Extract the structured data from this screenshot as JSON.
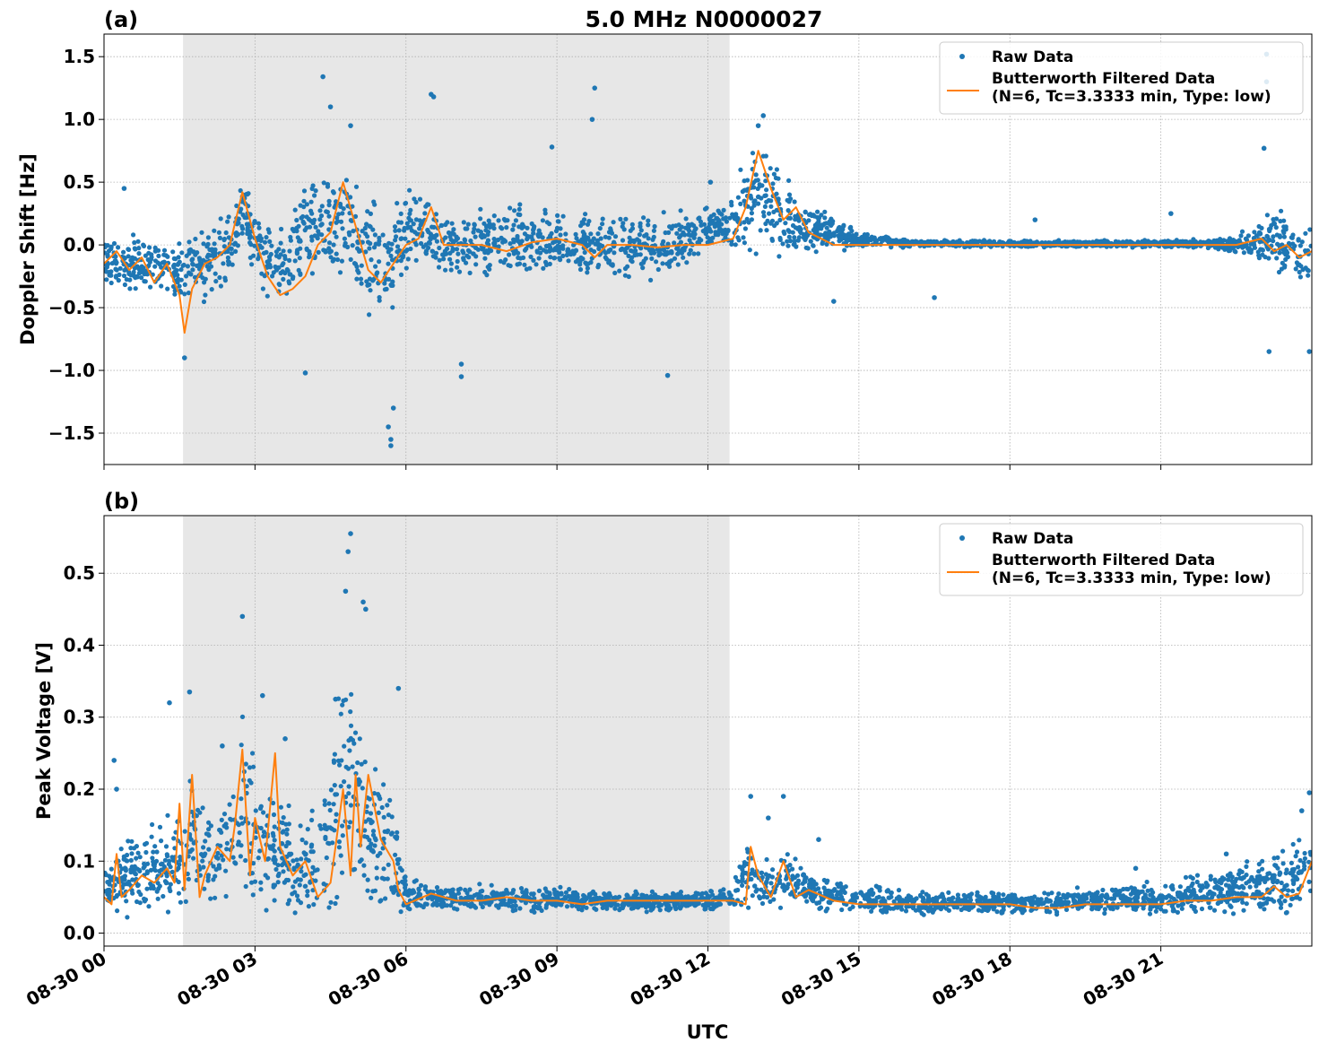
{
  "figure": {
    "title": "5.0 MHz N0000027",
    "xlabel": "UTC"
  },
  "chart_data": [
    {
      "type": "scatter",
      "panel_label": "(a)",
      "title": "5.0 MHz N0000027",
      "xlabel": "",
      "ylabel": "Doppler Shift [Hz]",
      "x_unit": "hours UTC on 08-30",
      "xlim": [
        0,
        24
      ],
      "ylim": [
        -1.75,
        1.68
      ],
      "yticks": [
        -1.5,
        -1.0,
        -0.5,
        0.0,
        0.5,
        1.0,
        1.5
      ],
      "ytick_labels": [
        "−1.5",
        "−1.0",
        "−0.5",
        "0.0",
        "0.5",
        "1.0",
        "1.5"
      ],
      "grid": true,
      "legend_position": "top-right",
      "shaded_region": [
        1.57,
        12.43
      ],
      "series": [
        {
          "name": "Raw Data",
          "kind": "scatter",
          "color": "#1f77b4",
          "band": {
            "x": [
              0,
              0.5,
              1.0,
              1.5,
              2.0,
              2.5,
              2.8,
              3.2,
              3.6,
              4.0,
              4.4,
              4.8,
              5.2,
              5.6,
              6.0,
              6.5,
              7.0,
              7.5,
              8.0,
              8.5,
              9.0,
              9.5,
              10.0,
              10.5,
              11.0,
              11.5,
              12.0,
              12.5,
              12.8,
              13.1,
              13.5,
              14.0,
              14.5,
              15.0,
              16.0,
              17.0,
              18.0,
              19.0,
              20.0,
              21.0,
              22.0,
              22.5,
              23.0,
              23.5,
              24.0
            ],
            "lower": [
              -0.35,
              -0.4,
              -0.45,
              -0.55,
              -0.5,
              -0.3,
              -0.05,
              -0.45,
              -0.55,
              -0.3,
              -0.3,
              -0.45,
              -0.6,
              -0.65,
              -0.3,
              -0.25,
              -0.25,
              -0.3,
              -0.3,
              -0.3,
              -0.25,
              -0.3,
              -0.3,
              -0.3,
              -0.3,
              -0.25,
              -0.05,
              -0.05,
              -0.05,
              -0.1,
              -0.15,
              -0.1,
              -0.05,
              -0.03,
              -0.02,
              -0.02,
              -0.02,
              -0.02,
              -0.02,
              -0.02,
              -0.03,
              -0.1,
              -0.2,
              -0.3,
              -0.4
            ],
            "upper": [
              0.1,
              0.1,
              0.1,
              0.1,
              0.15,
              0.3,
              0.6,
              0.2,
              0.2,
              0.5,
              0.7,
              0.7,
              0.5,
              0.3,
              0.5,
              0.35,
              0.2,
              0.35,
              0.35,
              0.3,
              0.3,
              0.3,
              0.25,
              0.3,
              0.25,
              0.3,
              0.3,
              0.35,
              0.85,
              0.9,
              0.6,
              0.35,
              0.25,
              0.1,
              0.05,
              0.04,
              0.04,
              0.04,
              0.04,
              0.04,
              0.05,
              0.1,
              0.25,
              0.3,
              0.2
            ]
          },
          "outliers": [
            [
              4.35,
              1.34
            ],
            [
              4.5,
              1.1
            ],
            [
              5.7,
              -1.6
            ],
            [
              5.7,
              -1.55
            ],
            [
              5.65,
              -1.45
            ],
            [
              5.75,
              -1.3
            ],
            [
              6.5,
              1.2
            ],
            [
              6.55,
              1.18
            ],
            [
              9.75,
              1.25
            ],
            [
              9.7,
              1.0
            ],
            [
              8.9,
              0.78
            ],
            [
              4.0,
              -1.02
            ],
            [
              7.1,
              -0.95
            ],
            [
              7.1,
              -1.05
            ],
            [
              11.2,
              -1.04
            ],
            [
              13.1,
              1.03
            ],
            [
              13.0,
              0.95
            ],
            [
              16.5,
              -0.42
            ],
            [
              23.1,
              1.52
            ],
            [
              23.1,
              1.3
            ],
            [
              23.05,
              0.77
            ],
            [
              23.15,
              -0.85
            ],
            [
              23.95,
              -0.85
            ],
            [
              1.6,
              -0.9
            ],
            [
              0.4,
              0.45
            ],
            [
              12.05,
              0.5
            ],
            [
              18.5,
              0.2
            ],
            [
              21.2,
              0.25
            ],
            [
              14.5,
              -0.45
            ],
            [
              4.9,
              0.95
            ]
          ]
        },
        {
          "name": "Butterworth Filtered Data\n(N=6, Tc=3.3333 min, Type: low)",
          "kind": "line",
          "color": "#ff7f0e",
          "x": [
            0,
            0.25,
            0.5,
            0.75,
            1.0,
            1.25,
            1.5,
            1.6,
            1.75,
            2.0,
            2.25,
            2.5,
            2.75,
            3.0,
            3.25,
            3.5,
            3.75,
            4.0,
            4.25,
            4.5,
            4.75,
            5.0,
            5.25,
            5.5,
            5.75,
            6.0,
            6.25,
            6.5,
            6.75,
            7.0,
            7.5,
            8.0,
            8.5,
            9.0,
            9.5,
            9.75,
            10.0,
            10.5,
            11.0,
            11.5,
            12.0,
            12.5,
            12.75,
            13.0,
            13.25,
            13.5,
            13.75,
            14.0,
            14.5,
            15.0,
            16.0,
            17.0,
            18.0,
            19.0,
            20.0,
            21.0,
            22.0,
            22.5,
            23.0,
            23.25,
            23.5,
            23.75,
            24.0
          ],
          "y": [
            -0.15,
            -0.05,
            -0.2,
            -0.1,
            -0.3,
            -0.15,
            -0.4,
            -0.7,
            -0.35,
            -0.15,
            -0.1,
            0.0,
            0.42,
            0.05,
            -0.25,
            -0.4,
            -0.35,
            -0.25,
            0.0,
            0.1,
            0.5,
            0.15,
            -0.2,
            -0.3,
            -0.15,
            0.0,
            0.05,
            0.3,
            0.0,
            0.0,
            0.0,
            -0.05,
            0.02,
            0.05,
            0.0,
            -0.1,
            0.0,
            0.0,
            -0.02,
            0.0,
            0.0,
            0.05,
            0.3,
            0.75,
            0.45,
            0.2,
            0.3,
            0.1,
            0.0,
            0.0,
            0.0,
            0.0,
            0.0,
            0.0,
            0.0,
            0.0,
            0.0,
            0.0,
            0.05,
            -0.05,
            0.0,
            -0.1,
            -0.05
          ]
        }
      ]
    },
    {
      "type": "scatter",
      "panel_label": "(b)",
      "title": "",
      "xlabel": "UTC",
      "ylabel": "Peak Voltage [V]",
      "x_unit": "hours UTC on 08-30",
      "xlim": [
        0,
        24
      ],
      "ylim": [
        -0.018,
        0.58
      ],
      "yticks": [
        0.0,
        0.1,
        0.2,
        0.3,
        0.4,
        0.5
      ],
      "ytick_labels": [
        "0.0",
        "0.1",
        "0.2",
        "0.3",
        "0.4",
        "0.5"
      ],
      "xticks": [
        0,
        3,
        6,
        9,
        12,
        15,
        18,
        21
      ],
      "xtick_labels": [
        "08-30 00",
        "08-30 03",
        "08-30 06",
        "08-30 09",
        "08-30 12",
        "08-30 15",
        "08-30 18",
        "08-30 21"
      ],
      "grid": true,
      "legend_position": "top-right",
      "shaded_region": [
        1.57,
        12.43
      ],
      "series": [
        {
          "name": "Raw Data",
          "kind": "scatter",
          "color": "#1f77b4",
          "band": {
            "x": [
              0,
              0.5,
              1.0,
              1.5,
              1.75,
              2.0,
              2.5,
              2.75,
              3.0,
              3.5,
              4.0,
              4.5,
              4.75,
              5.0,
              5.25,
              5.5,
              5.75,
              6.0,
              6.5,
              7.0,
              8.0,
              9.0,
              10.0,
              11.0,
              12.0,
              12.5,
              12.75,
              13.0,
              13.5,
              14.0,
              14.5,
              15.0,
              16.0,
              17.0,
              18.0,
              19.0,
              20.0,
              21.0,
              22.0,
              22.5,
              23.0,
              23.5,
              24.0
            ],
            "lower": [
              0.03,
              0.02,
              0.02,
              0.02,
              0.02,
              0.02,
              0.02,
              0.02,
              0.02,
              0.02,
              0.02,
              0.02,
              0.03,
              0.03,
              0.02,
              0.02,
              0.02,
              0.025,
              0.03,
              0.03,
              0.03,
              0.03,
              0.03,
              0.03,
              0.03,
              0.03,
              0.03,
              0.03,
              0.03,
              0.03,
              0.03,
              0.025,
              0.025,
              0.025,
              0.025,
              0.025,
              0.025,
              0.025,
              0.02,
              0.02,
              0.02,
              0.02,
              0.02
            ],
            "upper": [
              0.09,
              0.14,
              0.15,
              0.18,
              0.25,
              0.18,
              0.25,
              0.35,
              0.25,
              0.2,
              0.15,
              0.25,
              0.4,
              0.35,
              0.25,
              0.25,
              0.2,
              0.08,
              0.07,
              0.07,
              0.065,
              0.065,
              0.06,
              0.06,
              0.06,
              0.065,
              0.15,
              0.1,
              0.12,
              0.09,
              0.08,
              0.07,
              0.06,
              0.06,
              0.06,
              0.06,
              0.07,
              0.07,
              0.09,
              0.1,
              0.11,
              0.12,
              0.15
            ]
          },
          "outliers": [
            [
              4.9,
              0.555
            ],
            [
              4.85,
              0.53
            ],
            [
              4.8,
              0.475
            ],
            [
              5.15,
              0.46
            ],
            [
              5.2,
              0.45
            ],
            [
              2.75,
              0.44
            ],
            [
              1.3,
              0.32
            ],
            [
              1.7,
              0.335
            ],
            [
              3.15,
              0.33
            ],
            [
              4.6,
              0.325
            ],
            [
              5.85,
              0.34
            ],
            [
              0.2,
              0.24
            ],
            [
              13.5,
              0.19
            ],
            [
              12.85,
              0.19
            ],
            [
              13.2,
              0.16
            ],
            [
              14.2,
              0.13
            ],
            [
              23.95,
              0.195
            ],
            [
              23.8,
              0.17
            ],
            [
              22.3,
              0.11
            ],
            [
              20.5,
              0.09
            ],
            [
              2.35,
              0.26
            ],
            [
              3.6,
              0.27
            ],
            [
              0.25,
              0.2
            ]
          ]
        },
        {
          "name": "Butterworth Filtered Data\n(N=6, Tc=3.3333 min, Type: low)",
          "kind": "line",
          "color": "#ff7f0e",
          "x": [
            0,
            0.15,
            0.25,
            0.35,
            0.5,
            0.75,
            1.0,
            1.25,
            1.4,
            1.5,
            1.6,
            1.75,
            1.9,
            2.0,
            2.25,
            2.5,
            2.6,
            2.75,
            2.9,
            3.0,
            3.2,
            3.4,
            3.5,
            3.75,
            4.0,
            4.25,
            4.5,
            4.6,
            4.75,
            4.9,
            5.0,
            5.1,
            5.25,
            5.5,
            5.75,
            5.85,
            6.0,
            6.5,
            7.0,
            7.5,
            8.0,
            8.5,
            9.0,
            9.5,
            10.0,
            10.5,
            11.0,
            11.5,
            12.0,
            12.5,
            12.75,
            12.85,
            13.0,
            13.25,
            13.5,
            13.75,
            14.0,
            14.5,
            15.0,
            16.0,
            17.0,
            18.0,
            18.5,
            19.0,
            19.5,
            20.0,
            20.5,
            21.0,
            21.5,
            22.0,
            22.5,
            23.0,
            23.25,
            23.5,
            23.75,
            24.0
          ],
          "y": [
            0.05,
            0.04,
            0.11,
            0.05,
            0.06,
            0.08,
            0.07,
            0.09,
            0.07,
            0.18,
            0.06,
            0.22,
            0.05,
            0.08,
            0.12,
            0.1,
            0.15,
            0.255,
            0.08,
            0.16,
            0.1,
            0.25,
            0.12,
            0.08,
            0.1,
            0.05,
            0.07,
            0.12,
            0.2,
            0.08,
            0.22,
            0.12,
            0.22,
            0.13,
            0.1,
            0.06,
            0.04,
            0.055,
            0.045,
            0.045,
            0.05,
            0.045,
            0.045,
            0.04,
            0.045,
            0.045,
            0.045,
            0.045,
            0.045,
            0.045,
            0.04,
            0.12,
            0.08,
            0.05,
            0.1,
            0.05,
            0.06,
            0.045,
            0.04,
            0.04,
            0.04,
            0.04,
            0.035,
            0.035,
            0.04,
            0.04,
            0.04,
            0.04,
            0.045,
            0.045,
            0.05,
            0.05,
            0.065,
            0.05,
            0.055,
            0.1
          ]
        }
      ]
    }
  ]
}
